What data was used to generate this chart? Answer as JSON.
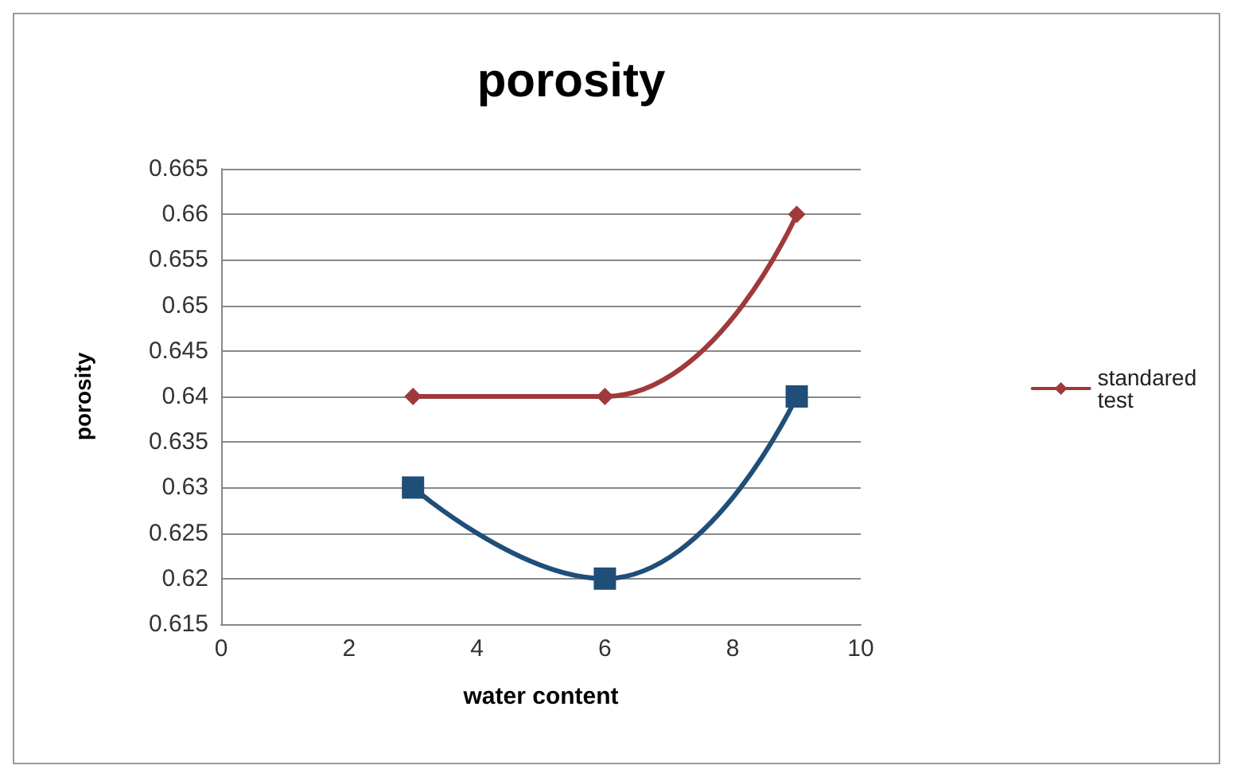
{
  "chart_data": {
    "type": "line",
    "title": "porosity",
    "xlabel": "water content",
    "ylabel": "porosity",
    "x": [
      3,
      6,
      9
    ],
    "series": [
      {
        "name": "standared test",
        "color": "#a0393a",
        "marker": "diamond",
        "values": [
          0.64,
          0.64,
          0.66
        ]
      },
      {
        "color": "#1f4e79",
        "marker": "square",
        "values": [
          0.63,
          0.62,
          0.64
        ]
      }
    ],
    "xlim": [
      0,
      10
    ],
    "xticks": [
      0,
      2,
      4,
      6,
      8,
      10
    ],
    "ylim": [
      0.615,
      0.665
    ],
    "yticks": [
      0.615,
      0.62,
      0.625,
      0.63,
      0.635,
      0.64,
      0.645,
      0.65,
      0.655,
      0.66,
      0.665
    ],
    "grid": "y",
    "legend": "right",
    "line_style": "solid"
  }
}
